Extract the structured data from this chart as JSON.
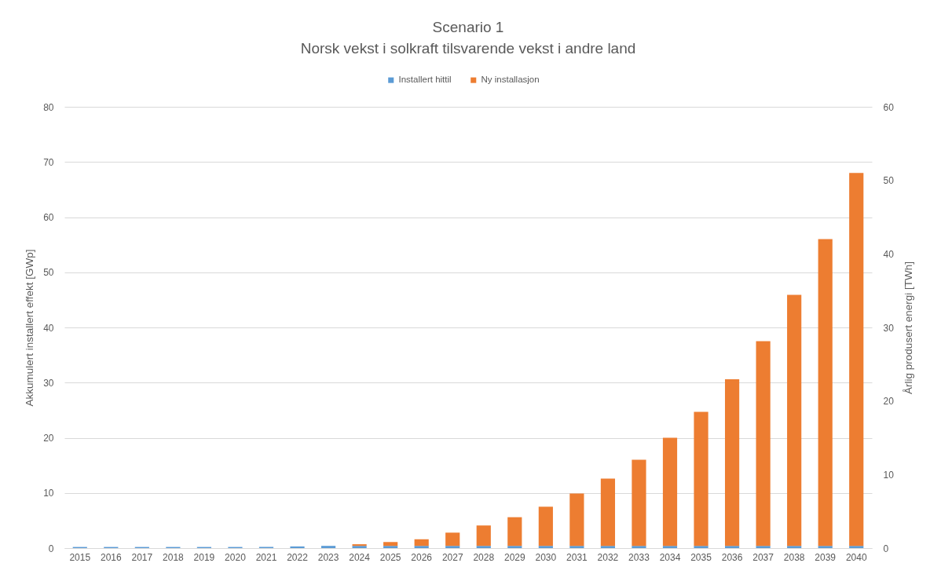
{
  "chart_data": {
    "type": "bar",
    "title": "Scenario 1",
    "subtitle": "Norsk vekst i solkraft tilsvarende vekst i andre land",
    "ylabel": "Akkumulert installert effekt [GWp]",
    "y2label": "Årlig produsert energi [TWh]",
    "categories": [
      "2015",
      "2016",
      "2017",
      "2018",
      "2019",
      "2020",
      "2021",
      "2022",
      "2023",
      "2024",
      "2025",
      "2026",
      "2027",
      "2028",
      "2029",
      "2030",
      "2031",
      "2032",
      "2033",
      "2034",
      "2035",
      "2036",
      "2037",
      "2038",
      "2039",
      "2040"
    ],
    "series": [
      {
        "name": "Installert hittil",
        "color": "#5b9bd5",
        "values": [
          0.2,
          0.2,
          0.2,
          0.2,
          0.2,
          0.2,
          0.2,
          0.3,
          0.4,
          0.4,
          0.4,
          0.4,
          0.4,
          0.4,
          0.4,
          0.4,
          0.4,
          0.4,
          0.4,
          0.4,
          0.4,
          0.4,
          0.4,
          0.4,
          0.4,
          0.4
        ]
      },
      {
        "name": "Ny installasjon",
        "color": "#ed7d31",
        "values": [
          null,
          null,
          null,
          null,
          null,
          null,
          null,
          null,
          null,
          0.3,
          0.7,
          1.2,
          2.4,
          3.7,
          5.2,
          7.1,
          9.5,
          12.2,
          15.6,
          19.6,
          24.3,
          30.2,
          37.1,
          45.5,
          55.6,
          67.6
        ]
      }
    ],
    "stacked": true,
    "ylim": [
      0,
      80
    ],
    "yticks": [
      0,
      10,
      20,
      30,
      40,
      50,
      60,
      70,
      80
    ],
    "y2lim": [
      0,
      60
    ],
    "y2ticks": [
      0,
      10,
      20,
      30,
      40,
      50,
      60
    ],
    "grid": "y",
    "legend": "top"
  }
}
